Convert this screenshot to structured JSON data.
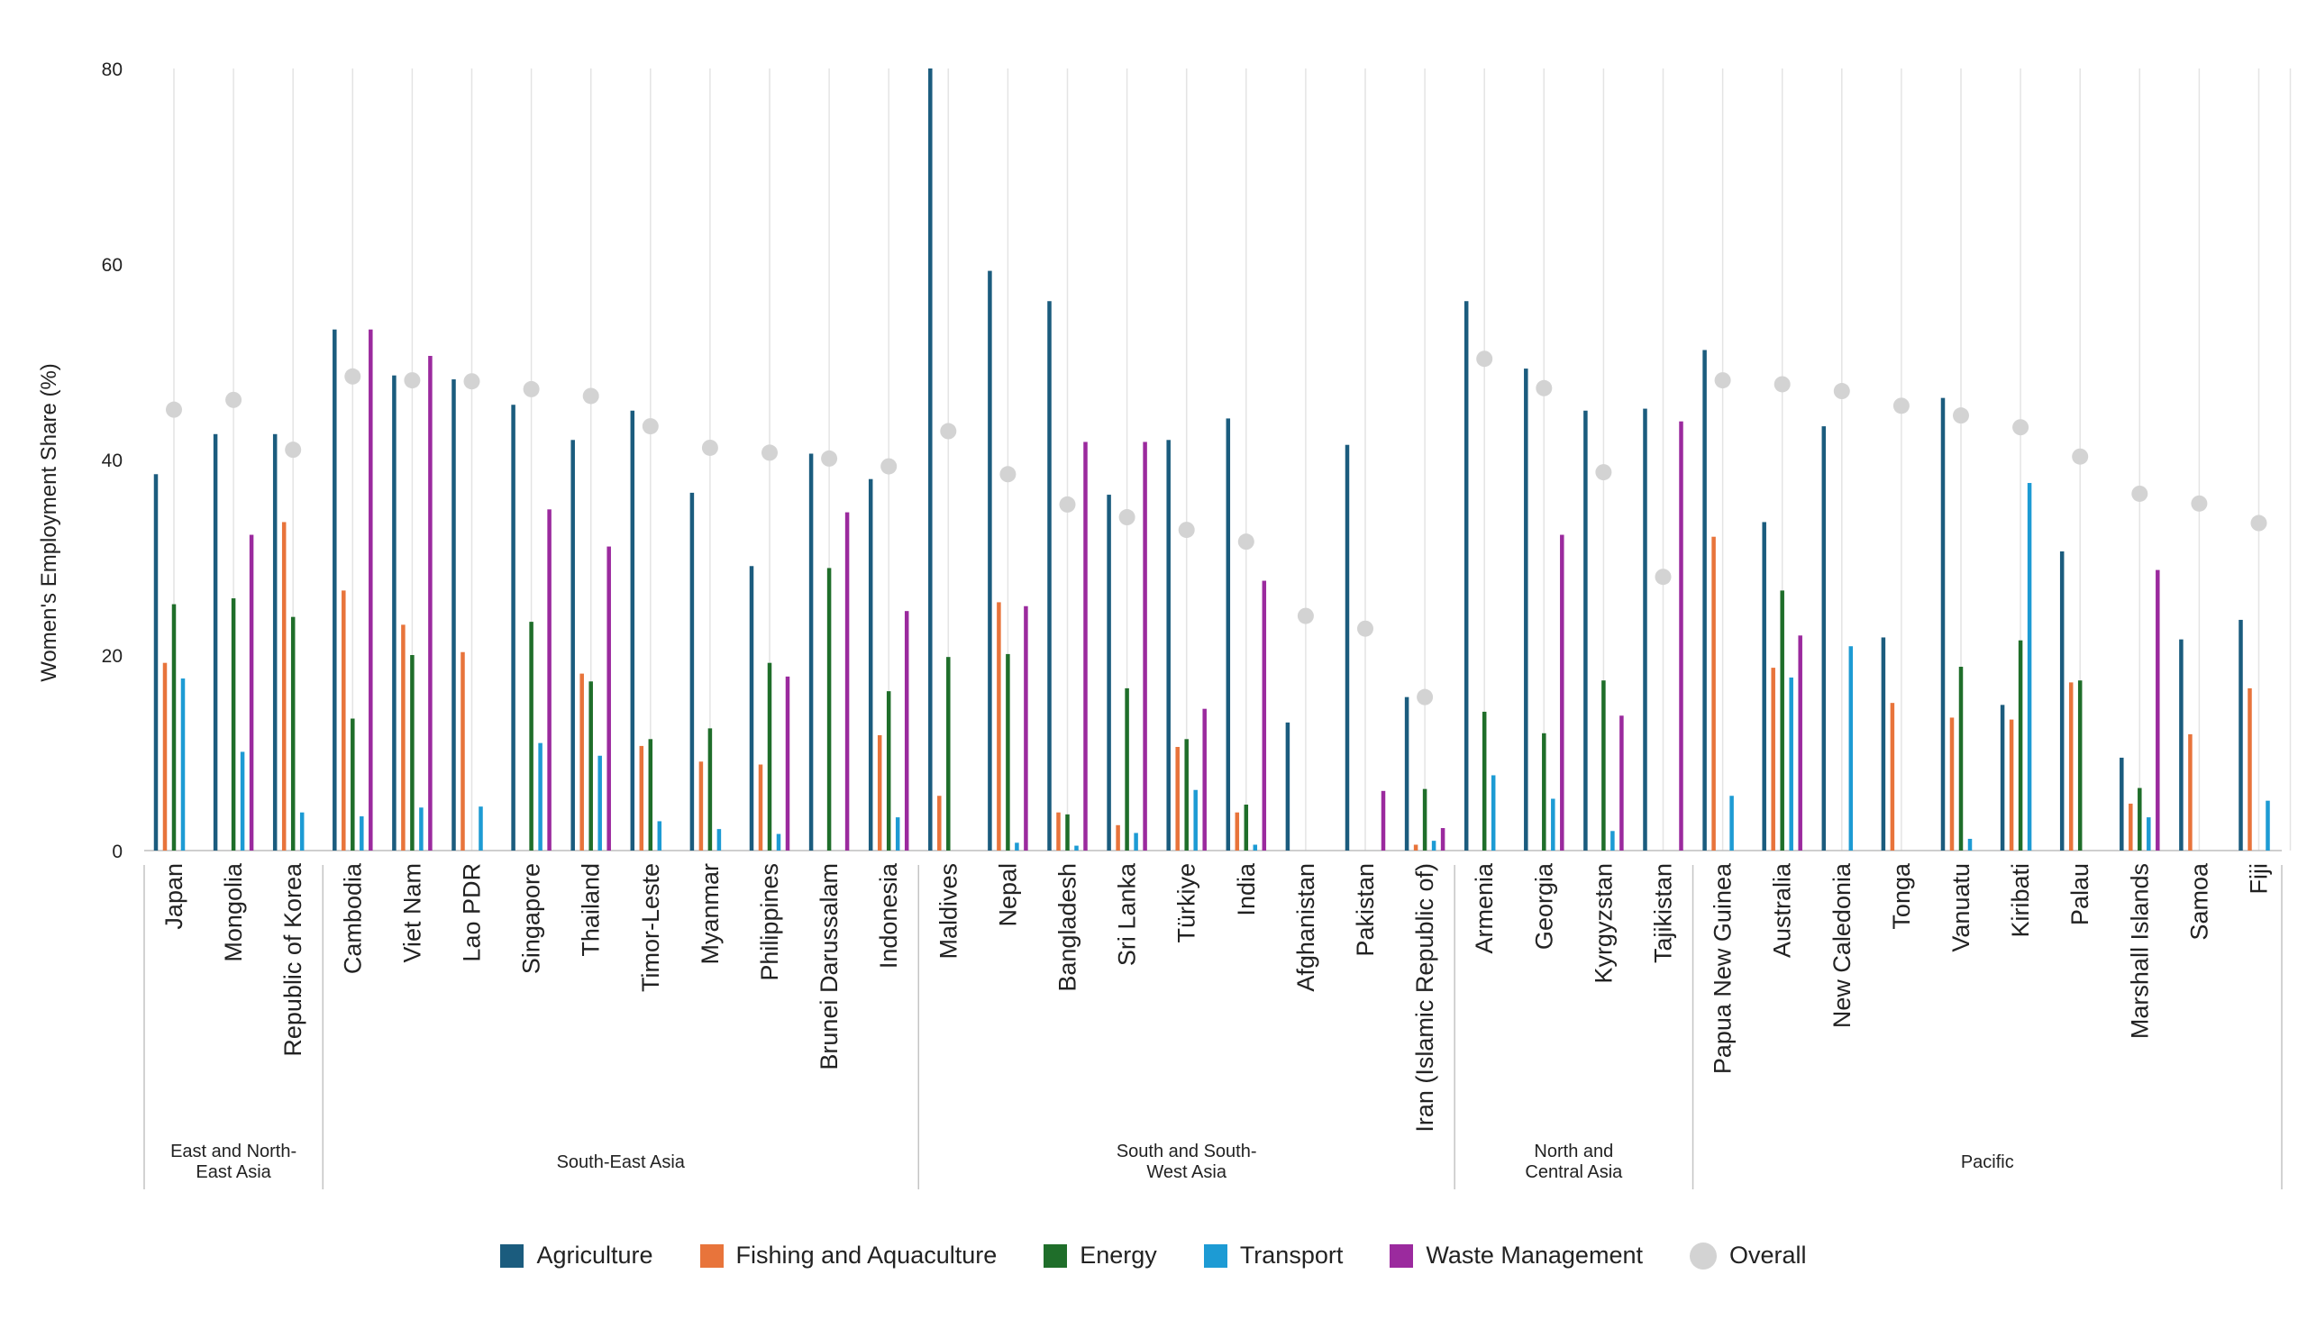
{
  "chart_data": {
    "type": "bar",
    "ylabel": "Women's Employment Share (%)",
    "ylim": [
      0,
      80
    ],
    "yticks": [
      "0",
      "20",
      "40",
      "60",
      "80"
    ],
    "grid": "vertical lines per country",
    "legend_position": "bottom-center",
    "series": [
      {
        "name": "Agriculture",
        "color": "#1b5c7e"
      },
      {
        "name": "Fishing and Aquaculture",
        "color": "#e8743b"
      },
      {
        "name": "Energy",
        "color": "#1f6e2a"
      },
      {
        "name": "Transport",
        "color": "#1d9bd4"
      },
      {
        "name": "Waste Management",
        "color": "#9b2a9e"
      },
      {
        "name": "Overall",
        "color": "#d3d3d3",
        "marker": "dot"
      }
    ],
    "groups": [
      {
        "name": "East and North-\nEast Asia",
        "countries": [
          "Japan",
          "Mongolia",
          "Republic of Korea"
        ]
      },
      {
        "name": "South-East Asia",
        "countries": [
          "Cambodia",
          "Viet Nam",
          "Lao PDR",
          "Singapore",
          "Thailand",
          "Timor-Leste",
          "Myanmar",
          "Philippines",
          "Brunei Darussalam",
          "Indonesia"
        ]
      },
      {
        "name": "South and South-\nWest Asia",
        "countries": [
          "Maldives",
          "Nepal",
          "Bangladesh",
          "Sri Lanka",
          "Türkiye",
          "India",
          "Afghanistan",
          "Pakistan",
          "Iran (Islamic Republic of)"
        ]
      },
      {
        "name": "North and\nCentral Asia",
        "countries": [
          "Armenia",
          "Georgia",
          "Kyrgyzstan",
          "Tajikistan"
        ]
      },
      {
        "name": "Pacific",
        "countries": [
          "Papua New Guinea",
          "Australia",
          "New Caledonia",
          "Tonga",
          "Vanuatu",
          "Kiribati",
          "Palau",
          "Marshall Islands",
          "Samoa",
          "Fiji"
        ]
      }
    ],
    "countries": [
      {
        "name": "Japan",
        "values": [
          38.5,
          19.2,
          25.2,
          17.6,
          null
        ],
        "overall": 45.1
      },
      {
        "name": "Mongolia",
        "values": [
          42.6,
          null,
          25.8,
          10.1,
          32.3
        ],
        "overall": 46.1
      },
      {
        "name": "Republic of Korea",
        "values": [
          42.6,
          33.6,
          23.9,
          3.9,
          null
        ],
        "overall": 41.0
      },
      {
        "name": "Cambodia",
        "values": [
          53.3,
          26.6,
          13.5,
          3.5,
          53.3
        ],
        "overall": 48.5
      },
      {
        "name": "Viet Nam",
        "values": [
          48.6,
          23.1,
          20.0,
          4.4,
          50.6
        ],
        "overall": 48.1
      },
      {
        "name": "Lao PDR",
        "values": [
          48.2,
          20.3,
          null,
          4.5,
          null
        ],
        "overall": 48.0
      },
      {
        "name": "Singapore",
        "values": [
          45.6,
          null,
          23.4,
          11.0,
          34.9
        ],
        "overall": 47.2
      },
      {
        "name": "Thailand",
        "values": [
          42.0,
          18.1,
          17.3,
          9.7,
          31.1
        ],
        "overall": 46.5
      },
      {
        "name": "Timor-Leste",
        "values": [
          45.0,
          10.7,
          11.4,
          3.0,
          null
        ],
        "overall": 43.4
      },
      {
        "name": "Myanmar",
        "values": [
          36.6,
          9.1,
          12.5,
          2.2,
          null
        ],
        "overall": 41.2
      },
      {
        "name": "Philippines",
        "values": [
          29.1,
          8.8,
          19.2,
          1.7,
          17.8
        ],
        "overall": 40.7
      },
      {
        "name": "Brunei Darussalam",
        "values": [
          40.6,
          null,
          28.9,
          null,
          34.6
        ],
        "overall": 40.1
      },
      {
        "name": "Indonesia",
        "values": [
          38.0,
          11.8,
          16.3,
          3.4,
          24.5
        ],
        "overall": 39.3
      },
      {
        "name": "Maldives",
        "values": [
          80.0,
          5.6,
          19.8,
          null,
          null
        ],
        "overall": 42.9
      },
      {
        "name": "Nepal",
        "values": [
          59.3,
          25.4,
          20.1,
          0.8,
          25.0
        ],
        "overall": 38.5
      },
      {
        "name": "Bangladesh",
        "values": [
          56.2,
          3.9,
          3.7,
          0.5,
          41.8
        ],
        "overall": 35.4
      },
      {
        "name": "Sri Lanka",
        "values": [
          36.4,
          2.6,
          16.6,
          1.8,
          41.8
        ],
        "overall": 34.1
      },
      {
        "name": "Türkiye",
        "values": [
          42.0,
          10.6,
          11.4,
          6.2,
          14.5
        ],
        "overall": 32.8
      },
      {
        "name": "India",
        "values": [
          44.2,
          3.9,
          4.7,
          0.6,
          27.6
        ],
        "overall": 31.6
      },
      {
        "name": "Afghanistan",
        "values": [
          13.1,
          null,
          null,
          null,
          null
        ],
        "overall": 24.0
      },
      {
        "name": "Pakistan",
        "values": [
          41.5,
          null,
          null,
          null,
          6.1
        ],
        "overall": 22.7
      },
      {
        "name": "Iran (Islamic Republic of)",
        "values": [
          15.7,
          0.6,
          6.3,
          1.0,
          2.3
        ],
        "overall": 15.7
      },
      {
        "name": "Armenia",
        "values": [
          56.2,
          null,
          14.2,
          7.7,
          null
        ],
        "overall": 50.3
      },
      {
        "name": "Georgia",
        "values": [
          49.3,
          null,
          12.0,
          5.3,
          32.3
        ],
        "overall": 47.3
      },
      {
        "name": "Kyrgyzstan",
        "values": [
          45.0,
          null,
          17.4,
          2.0,
          13.8
        ],
        "overall": 38.7
      },
      {
        "name": "Tajikistan",
        "values": [
          45.2,
          null,
          null,
          null,
          43.9
        ],
        "overall": 28.0
      },
      {
        "name": "Papua New Guinea",
        "values": [
          51.2,
          32.1,
          null,
          5.6,
          null
        ],
        "overall": 48.1
      },
      {
        "name": "Australia",
        "values": [
          33.6,
          18.7,
          26.6,
          17.7,
          22.0
        ],
        "overall": 47.7
      },
      {
        "name": "New Caledonia",
        "values": [
          43.4,
          null,
          null,
          20.9,
          null
        ],
        "overall": 47.0
      },
      {
        "name": "Tonga",
        "values": [
          21.8,
          15.1,
          null,
          null,
          null
        ],
        "overall": 45.5
      },
      {
        "name": "Vanuatu",
        "values": [
          46.3,
          13.6,
          18.8,
          1.2,
          null
        ],
        "overall": 44.5
      },
      {
        "name": "Kiribati",
        "values": [
          14.9,
          13.4,
          21.5,
          37.6,
          null
        ],
        "overall": 43.3
      },
      {
        "name": "Palau",
        "values": [
          30.6,
          17.2,
          17.4,
          null,
          null
        ],
        "overall": 40.3
      },
      {
        "name": "Marshall Islands",
        "values": [
          9.5,
          4.8,
          6.4,
          3.4,
          28.7
        ],
        "overall": 36.5
      },
      {
        "name": "Samoa",
        "values": [
          21.6,
          11.9,
          null,
          null,
          null
        ],
        "overall": 35.5
      },
      {
        "name": "Fiji",
        "values": [
          23.6,
          16.6,
          null,
          5.1,
          null
        ],
        "overall": 33.5
      }
    ]
  }
}
